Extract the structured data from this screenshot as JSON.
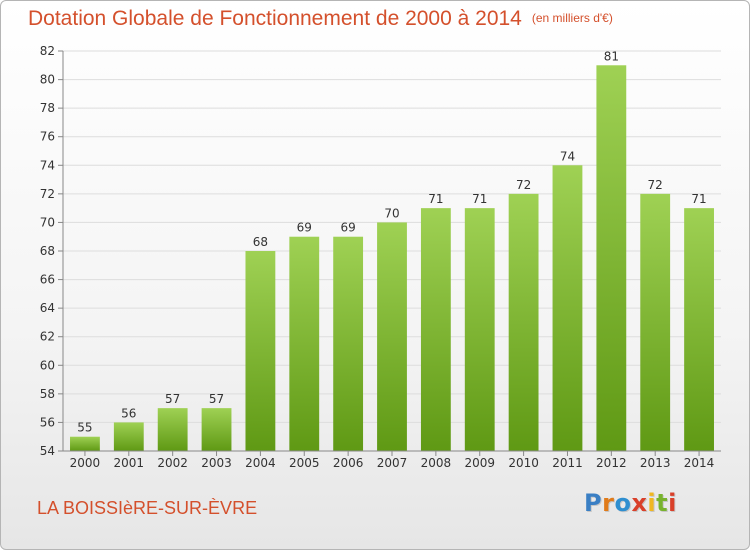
{
  "header": {
    "title": "Dotation Globale de Fonctionnement de 2000 à 2014",
    "unit": "(en milliers d'€)"
  },
  "footer": {
    "commune": "LA BOISSIèRE-SUR-ÈVRE",
    "logo_text": "Proxiti"
  },
  "colors": {
    "accent": "#d4502c",
    "bar_light": "#9fd154",
    "bar_dark": "#5f9914",
    "axis": "#888888",
    "grid": "#dddddd"
  },
  "chart_data": {
    "type": "bar",
    "title": "Dotation Globale de Fonctionnement de 2000 à 2014",
    "subtitle": "(en milliers d'€)",
    "categories": [
      "2000",
      "2001",
      "2002",
      "2003",
      "2004",
      "2005",
      "2006",
      "2007",
      "2008",
      "2009",
      "2010",
      "2011",
      "2012",
      "2013",
      "2014"
    ],
    "values": [
      55,
      56,
      57,
      57,
      68,
      69,
      69,
      70,
      71,
      71,
      72,
      74,
      81,
      72,
      71
    ],
    "xlabel": "",
    "ylabel": "",
    "ylim": [
      54,
      82
    ],
    "yticks": [
      54,
      56,
      58,
      60,
      62,
      64,
      66,
      68,
      70,
      72,
      74,
      76,
      78,
      80,
      82
    ],
    "data_labels": true,
    "grid": true,
    "legend": false
  }
}
